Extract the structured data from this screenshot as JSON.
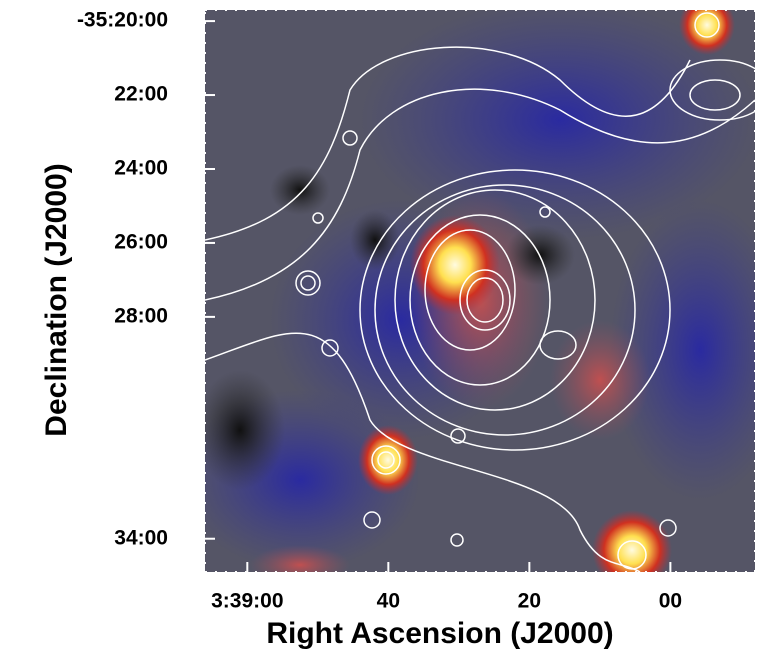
{
  "chart_data": {
    "type": "image",
    "xlabel": "Right Ascension (J2000)",
    "ylabel": "Declination (J2000)",
    "xlim": [
      2346,
      2268
    ],
    "ylim": [
      -2134.9,
      -2119.7
    ],
    "xticks": [
      {
        "value": 2340,
        "label": "3:39:00"
      },
      {
        "value": 2320,
        "label": "40"
      },
      {
        "value": 2300,
        "label": "20"
      },
      {
        "value": 2280,
        "label": "00"
      }
    ],
    "yticks": [
      {
        "value": -2120,
        "label": "-35:20:00"
      },
      {
        "value": -2122,
        "label": "22:00"
      },
      {
        "value": -2124,
        "label": "24:00"
      },
      {
        "value": -2126,
        "label": "26:00"
      },
      {
        "value": -2128,
        "label": "28:00"
      },
      {
        "value": -2134,
        "label": "34:00"
      }
    ]
  }
}
